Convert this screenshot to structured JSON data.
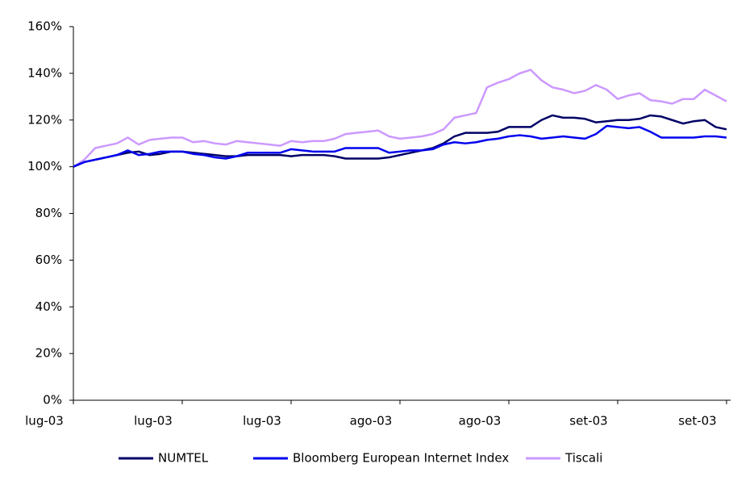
{
  "chart_data": {
    "type": "line",
    "categories": [
      "lug-03",
      null,
      null,
      null,
      null,
      null,
      null,
      null,
      null,
      null,
      "lug-03",
      null,
      null,
      null,
      null,
      null,
      null,
      null,
      null,
      null,
      "lug-03",
      null,
      null,
      null,
      null,
      null,
      null,
      null,
      null,
      null,
      "ago-03",
      null,
      null,
      null,
      null,
      null,
      null,
      null,
      null,
      null,
      "ago-03",
      null,
      null,
      null,
      null,
      null,
      null,
      null,
      null,
      null,
      "set-03",
      null,
      null,
      null,
      null,
      null,
      null,
      null,
      null,
      null,
      "set-03"
    ],
    "series": [
      {
        "name": "NUMTEL",
        "color": "#000066",
        "values": [
          100,
          102,
          103,
          104,
          105,
          106,
          106.5,
          105,
          105.5,
          106.5,
          106.5,
          106,
          105.5,
          105,
          104.5,
          104.5,
          105,
          105,
          105,
          105,
          104.5,
          105,
          105,
          105,
          104.5,
          103.5,
          103.5,
          103.5,
          103.5,
          104,
          105,
          106,
          107,
          108,
          110,
          113,
          114.5,
          114.5,
          114.5,
          115,
          117,
          117,
          117,
          120,
          122,
          121,
          121,
          120.5,
          119,
          119.5,
          120,
          120,
          120.5,
          122,
          121.5,
          120,
          118.5,
          119.5,
          120,
          117,
          116
        ]
      },
      {
        "name": "Bloomberg European Internet Index",
        "color": "#0000ee",
        "values": [
          100,
          102,
          103,
          104,
          105,
          107,
          105,
          105.5,
          106.5,
          106.5,
          106.5,
          105.5,
          105,
          104,
          103.5,
          104.5,
          106,
          106,
          106,
          106,
          107.5,
          107,
          106.5,
          106.5,
          106.5,
          108,
          108,
          108,
          108,
          106,
          106.5,
          107,
          107,
          107.5,
          109.5,
          110.5,
          110,
          110.5,
          111.5,
          112,
          113,
          113.5,
          113,
          112,
          112.5,
          113,
          112.5,
          112,
          114,
          117.5,
          117,
          116.5,
          117,
          115,
          112.5,
          112.5,
          112.5,
          112.5,
          113,
          113,
          112.5
        ]
      },
      {
        "name": "Tiscali",
        "color": "#cc99ff",
        "values": [
          100,
          103,
          108,
          109,
          110,
          112.5,
          109.5,
          111.5,
          112,
          112.5,
          112.5,
          110.5,
          111,
          110,
          109.5,
          111,
          110.5,
          110,
          109.5,
          109,
          111,
          110.5,
          111,
          111,
          112,
          114,
          114.5,
          115,
          115.5,
          113,
          112,
          112.5,
          113,
          114,
          116,
          121,
          122,
          123,
          134,
          136,
          137.5,
          140,
          141.5,
          137,
          134,
          133,
          131.5,
          132.5,
          135,
          133,
          129,
          130.5,
          131.5,
          128.5,
          128,
          127,
          129,
          129,
          133,
          130.5,
          128
        ]
      }
    ],
    "ylim": [
      0,
      160
    ],
    "yticks": [
      {
        "value": 0,
        "label": "0%"
      },
      {
        "value": 20,
        "label": "20%"
      },
      {
        "value": 40,
        "label": "40%"
      },
      {
        "value": 60,
        "label": "60%"
      },
      {
        "value": 80,
        "label": "80%"
      },
      {
        "value": 100,
        "label": "100%"
      },
      {
        "value": 120,
        "label": "120%"
      },
      {
        "value": 140,
        "label": "140%"
      },
      {
        "value": 160,
        "label": "160%"
      }
    ],
    "legend": "bottom",
    "grid": false
  }
}
